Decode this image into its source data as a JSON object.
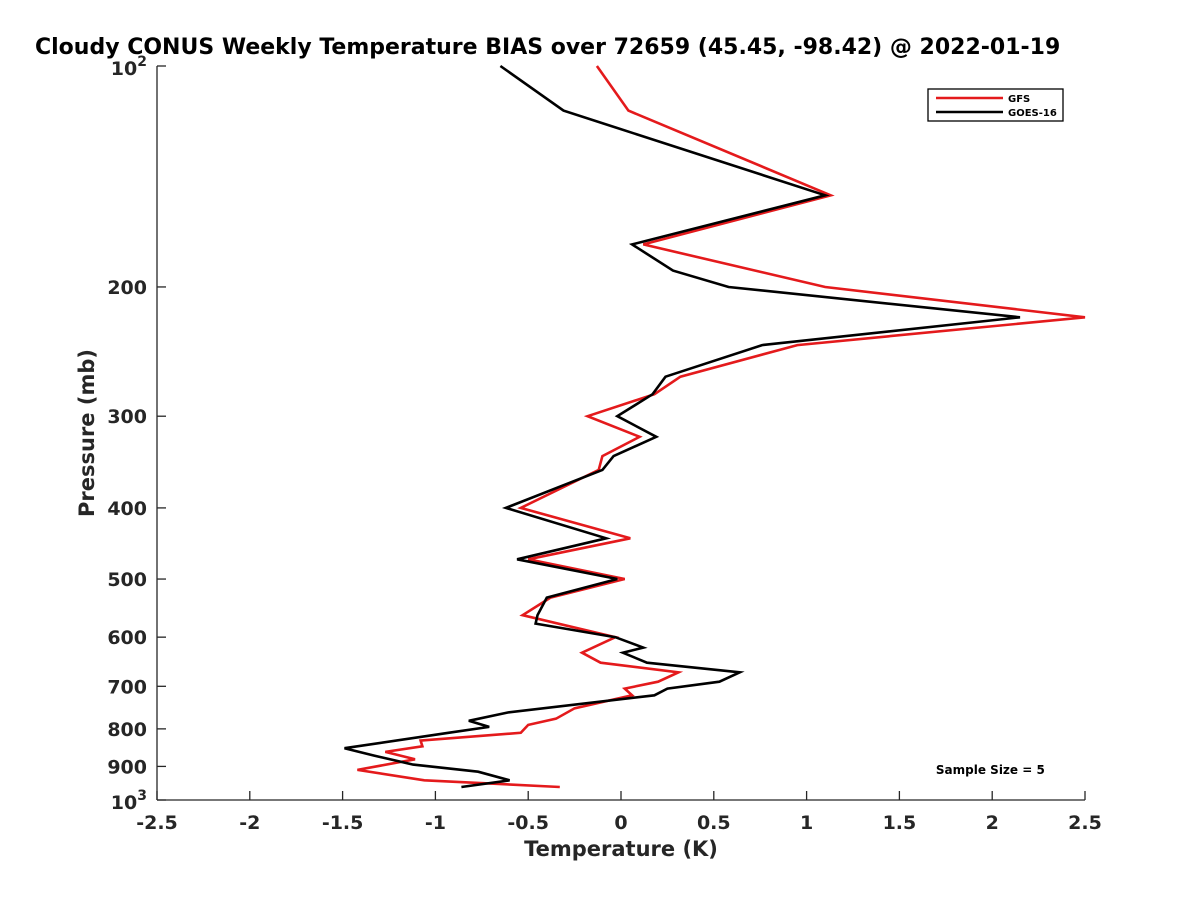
{
  "chart_data": {
    "type": "line",
    "title": "Cloudy CONUS Weekly Temperature BIAS over 72659 (45.45, -98.42) @ 2022-01-19",
    "xlabel": "Temperature (K)",
    "ylabel": "Pressure (mb)",
    "xlim": [
      -2.5,
      2.5
    ],
    "ylim": [
      100,
      1000
    ],
    "y_scale": "log",
    "y_reversed": true,
    "x_ticks": [
      -2.5,
      -2,
      -1.5,
      -1,
      -0.5,
      0,
      0.5,
      1,
      1.5,
      2,
      2.5
    ],
    "x_tick_labels": [
      "-2.5",
      "-2",
      "-1.5",
      "-1",
      "-0.5",
      "0",
      "0.5",
      "1",
      "1.5",
      "2",
      "2.5"
    ],
    "y_ticks": [
      200,
      300,
      400,
      500,
      600,
      700,
      800,
      900
    ],
    "y_tick_labels": [
      "200",
      "300",
      "400",
      "500",
      "600",
      "700",
      "800",
      "900"
    ],
    "y_end_labels": [
      {
        "value": 100,
        "base": "10",
        "exp": "2"
      },
      {
        "value": 1000,
        "base": "10",
        "exp": "3"
      }
    ],
    "grid": false,
    "legend_position": "top-right",
    "series": [
      {
        "name": "GFS",
        "color": "#e41a1c",
        "points": [
          [
            -0.13,
            100
          ],
          [
            0.04,
            115
          ],
          [
            1.13,
            150
          ],
          [
            0.12,
            175
          ],
          [
            1.1,
            200
          ],
          [
            2.5,
            220
          ],
          [
            0.95,
            240
          ],
          [
            0.32,
            265
          ],
          [
            0.18,
            280
          ],
          [
            -0.18,
            300
          ],
          [
            0.1,
            320
          ],
          [
            -0.1,
            340
          ],
          [
            -0.12,
            355
          ],
          [
            -0.54,
            400
          ],
          [
            0.05,
            440
          ],
          [
            -0.5,
            470
          ],
          [
            0.02,
            500
          ],
          [
            -0.38,
            530
          ],
          [
            -0.53,
            560
          ],
          [
            -0.03,
            600
          ],
          [
            -0.21,
            630
          ],
          [
            -0.11,
            650
          ],
          [
            0.31,
            670
          ],
          [
            0.2,
            690
          ],
          [
            0.02,
            705
          ],
          [
            0.06,
            720
          ],
          [
            -0.25,
            750
          ],
          [
            -0.35,
            775
          ],
          [
            -0.5,
            790
          ],
          [
            -0.54,
            810
          ],
          [
            -1.08,
            830
          ],
          [
            -1.07,
            845
          ],
          [
            -1.27,
            860
          ],
          [
            -1.11,
            880
          ],
          [
            -1.42,
            910
          ],
          [
            -1.06,
            940
          ],
          [
            -0.33,
            960
          ]
        ]
      },
      {
        "name": "GOES-16",
        "color": "#000000",
        "points": [
          [
            -0.65,
            100
          ],
          [
            -0.31,
            115
          ],
          [
            1.1,
            150
          ],
          [
            0.06,
            175
          ],
          [
            0.28,
            190
          ],
          [
            0.58,
            200
          ],
          [
            2.15,
            220
          ],
          [
            0.76,
            240
          ],
          [
            0.24,
            265
          ],
          [
            0.17,
            280
          ],
          [
            -0.02,
            300
          ],
          [
            0.19,
            320
          ],
          [
            -0.04,
            340
          ],
          [
            -0.1,
            355
          ],
          [
            -0.62,
            400
          ],
          [
            -0.08,
            440
          ],
          [
            -0.56,
            470
          ],
          [
            -0.02,
            500
          ],
          [
            -0.4,
            530
          ],
          [
            -0.45,
            560
          ],
          [
            -0.46,
            575
          ],
          [
            -0.03,
            600
          ],
          [
            0.12,
            620
          ],
          [
            0.01,
            630
          ],
          [
            0.14,
            650
          ],
          [
            0.64,
            670
          ],
          [
            0.53,
            690
          ],
          [
            0.25,
            705
          ],
          [
            0.18,
            720
          ],
          [
            -0.61,
            760
          ],
          [
            -0.82,
            780
          ],
          [
            -0.71,
            795
          ],
          [
            -0.93,
            810
          ],
          [
            -1.49,
            850
          ],
          [
            -1.33,
            870
          ],
          [
            -1.12,
            895
          ],
          [
            -0.77,
            915
          ],
          [
            -0.6,
            940
          ],
          [
            -0.86,
            960
          ]
        ]
      }
    ],
    "annotations": [
      {
        "text": "Sample Size = 5",
        "x": 2.02,
        "y": 910
      }
    ]
  }
}
